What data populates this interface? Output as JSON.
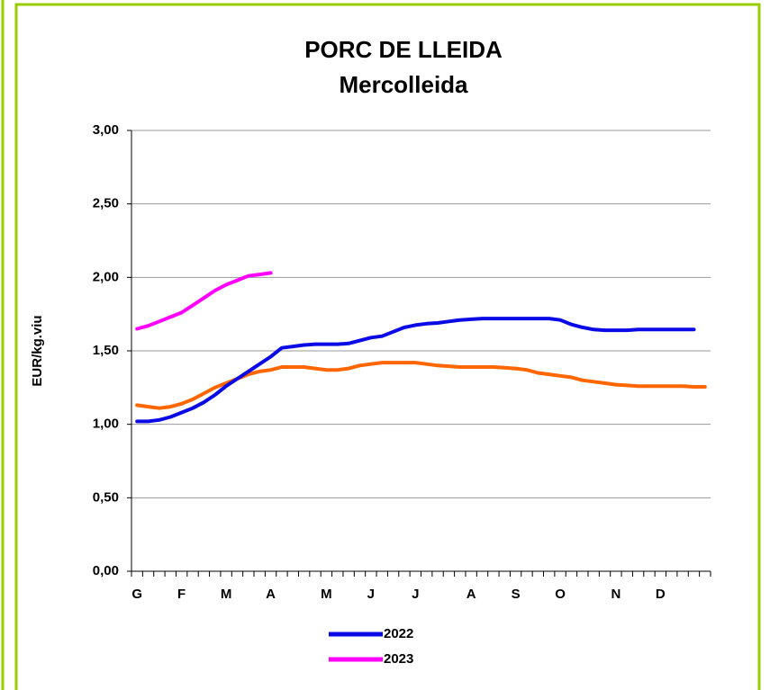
{
  "chart_data": {
    "type": "line",
    "title": "PORC DE LLEIDA",
    "subtitle": "Mercolleida",
    "y_label": "EUR/kg.viu",
    "categories": [
      "G",
      null,
      null,
      null,
      "F",
      null,
      null,
      null,
      "M",
      null,
      null,
      null,
      "A",
      null,
      null,
      null,
      null,
      "M",
      null,
      null,
      null,
      "J",
      null,
      null,
      null,
      "J",
      null,
      null,
      null,
      null,
      "A",
      null,
      null,
      null,
      "S",
      null,
      null,
      null,
      "O",
      null,
      null,
      null,
      null,
      "N",
      null,
      null,
      null,
      "D",
      null,
      null,
      null,
      null
    ],
    "series": [
      {
        "color": "#ff6600",
        "values": [
          1.13,
          1.12,
          1.11,
          1.12,
          1.14,
          1.17,
          1.21,
          1.25,
          1.28,
          1.31,
          1.34,
          1.36,
          1.37,
          1.39,
          1.39,
          1.39,
          1.38,
          1.37,
          1.37,
          1.38,
          1.4,
          1.41,
          1.42,
          1.42,
          1.42,
          1.42,
          1.41,
          1.4,
          1.395,
          1.39,
          1.39,
          1.39,
          1.39,
          1.385,
          1.38,
          1.37,
          1.35,
          1.34,
          1.33,
          1.32,
          1.3,
          1.29,
          1.28,
          1.27,
          1.265,
          1.26,
          1.26,
          1.26,
          1.26,
          1.26,
          1.255,
          1.255
        ]
      },
      {
        "name": "2022",
        "color": "#0a0ae6",
        "values": [
          1.02,
          1.02,
          1.03,
          1.05,
          1.08,
          1.11,
          1.15,
          1.2,
          1.26,
          1.31,
          1.36,
          1.41,
          1.46,
          1.52,
          1.53,
          1.54,
          1.545,
          1.545,
          1.545,
          1.55,
          1.57,
          1.59,
          1.6,
          1.63,
          1.66,
          1.675,
          1.685,
          1.69,
          1.7,
          1.71,
          1.715,
          1.72,
          1.72,
          1.72,
          1.72,
          1.72,
          1.72,
          1.72,
          1.71,
          1.68,
          1.66,
          1.645,
          1.64,
          1.64,
          1.64,
          1.645,
          1.645,
          1.645,
          1.645,
          1.645,
          1.645,
          null
        ]
      },
      {
        "name": "2023",
        "color": "#ff00ff",
        "values": [
          1.65,
          1.67,
          1.7,
          1.73,
          1.76,
          1.81,
          1.86,
          1.91,
          1.95,
          1.98,
          2.01,
          2.02,
          2.03,
          null,
          null,
          null,
          null,
          null,
          null,
          null,
          null,
          null,
          null,
          null,
          null,
          null,
          null,
          null,
          null,
          null,
          null,
          null,
          null,
          null,
          null,
          null,
          null,
          null,
          null,
          null,
          null,
          null,
          null,
          null,
          null,
          null,
          null,
          null,
          null,
          null,
          null,
          null
        ]
      }
    ],
    "ylim": [
      0,
      3
    ],
    "yticks": [
      {
        "value": 0,
        "label": "0,00"
      },
      {
        "value": 0.5,
        "label": "0,50"
      },
      {
        "value": 1,
        "label": "1,00"
      },
      {
        "value": 1.5,
        "label": "1,50"
      },
      {
        "value": 2,
        "label": "2,00"
      },
      {
        "value": 2.5,
        "label": "2,50"
      },
      {
        "value": 3,
        "label": "3,00"
      }
    ],
    "grid": true
  }
}
